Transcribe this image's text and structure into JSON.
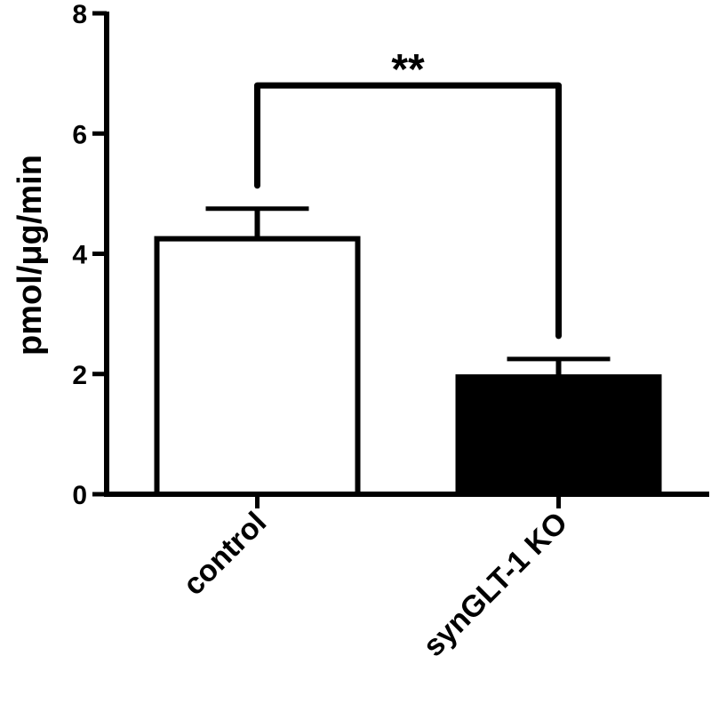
{
  "chart_data": {
    "type": "bar",
    "title": "",
    "ylabel": "pmol/μg/min",
    "xlabel": "",
    "ylim": [
      0,
      8
    ],
    "yticks": [
      0,
      2,
      4,
      6,
      8
    ],
    "categories": [
      "control",
      "synGLT-1 KO"
    ],
    "values": [
      4.25,
      1.95
    ],
    "errors": [
      0.5,
      0.3
    ],
    "fills": [
      "#ffffff",
      "#000000"
    ],
    "significance": {
      "from": 0,
      "to": 1,
      "label": "**",
      "y": 6.8
    },
    "grid": false,
    "legend": "none"
  }
}
